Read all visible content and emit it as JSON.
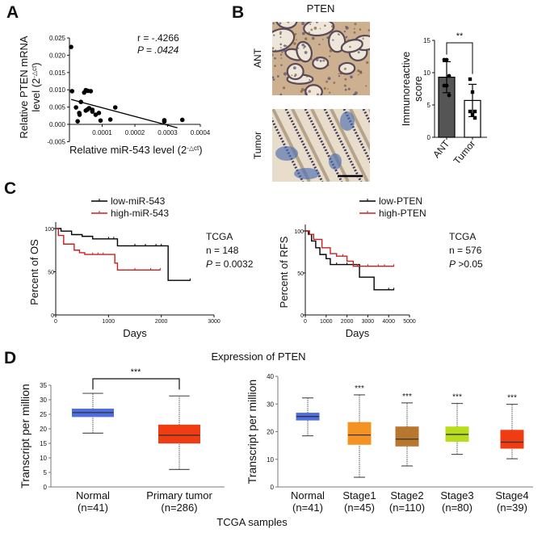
{
  "panels": {
    "a": "A",
    "b": "B",
    "c": "C",
    "d": "D"
  },
  "chart_data": [
    {
      "id": "scatter_A",
      "type": "scatter",
      "xlabel_prefix": "Relative miR-543 level (2",
      "xlabel_sup": "-△ct",
      "xlabel_suffix": ")",
      "ylabel_line1": "Relative PTEN mRNA",
      "ylabel_line2_prefix": "level (2",
      "ylabel_line2_sup": "-△ct",
      "ylabel_line2_suffix": ")",
      "xlim": [
        0,
        0.0004
      ],
      "ylim": [
        -0.005,
        0.025
      ],
      "xticks": [
        "0.0001",
        "0.0002",
        "0.0003",
        "0.0004"
      ],
      "yticks": [
        "-0.005",
        "0.000",
        "0.005",
        "0.010",
        "0.015",
        "0.020",
        "0.025"
      ],
      "stat_r": "r = -.4266",
      "stat_p": "P = .0424",
      "points": [
        [
          5e-06,
          0.0224
        ],
        [
          8e-06,
          0.0096
        ],
        [
          2e-05,
          0.0049
        ],
        [
          2.5e-05,
          0.0009
        ],
        [
          3e-05,
          0.0033
        ],
        [
          3.1e-05,
          0.0028
        ],
        [
          3.5e-05,
          0.0065
        ],
        [
          4.5e-05,
          0.0092
        ],
        [
          5e-05,
          0.0099
        ],
        [
          5.6e-05,
          0.0097
        ],
        [
          5e-05,
          0.004
        ],
        [
          5.5e-05,
          0.0043
        ],
        [
          6e-05,
          0.0047
        ],
        [
          6.5e-05,
          0.0096
        ],
        [
          7e-05,
          0.0042
        ],
        [
          7e-05,
          0.0037
        ],
        [
          8e-05,
          0.0028
        ],
        [
          9e-05,
          0.0033
        ],
        [
          9.5e-05,
          0.0011
        ],
        [
          0.000125,
          0.0014
        ],
        [
          0.00014,
          0.0049
        ],
        [
          0.00029,
          0.0012
        ],
        [
          0.00029,
          0.0008
        ],
        [
          0.000345,
          0.0013
        ]
      ],
      "fit_line": [
        [
          5e-06,
          0.0072
        ],
        [
          0.00033,
          -0.001
        ]
      ]
    },
    {
      "id": "bar_B",
      "type": "bar",
      "title": "PTEN",
      "image_labels": [
        "ANT",
        "Tumor"
      ],
      "ylabel_line1": "Immunoreactive",
      "ylabel_line2": "score",
      "categories": [
        "ANT",
        "Tumor"
      ],
      "values": [
        9.3,
        5.7
      ],
      "sd": [
        2.4,
        2.5
      ],
      "points": [
        [
          12,
          12,
          9.5,
          8,
          8,
          6.5
        ],
        [
          9,
          7,
          4,
          4,
          3.5,
          3
        ]
      ],
      "colors": [
        "#555555",
        "#ffffff"
      ],
      "ylim": [
        0,
        15
      ],
      "yticks": [
        "0",
        "5",
        "10",
        "15"
      ],
      "significance": "**"
    },
    {
      "id": "km_OS",
      "type": "line",
      "ylabel": "Percent of OS",
      "xlabel": "Days",
      "xlim": [
        0,
        3000
      ],
      "ylim": [
        0,
        100
      ],
      "xticks": [
        "0",
        "1000",
        "2000",
        "3000"
      ],
      "yticks": [
        "0",
        "50",
        "100"
      ],
      "legend_placement": "top",
      "annotation": [
        "TCGA",
        "n = 148",
        "P",
        " = 0.0032"
      ],
      "series": [
        {
          "name": "low-miR-543",
          "color": "#000000",
          "steps": [
            [
              0,
              100
            ],
            [
              100,
              97
            ],
            [
              300,
              93
            ],
            [
              500,
              91
            ],
            [
              700,
              88
            ],
            [
              1170,
              80
            ],
            [
              2130,
              40
            ],
            [
              2550,
              40
            ]
          ],
          "censor": [
            1000,
            1100,
            1500,
            1700,
            1900,
            2000,
            2550
          ]
        },
        {
          "name": "high-miR-543",
          "color": "#cc1f1f",
          "steps": [
            [
              0,
              100
            ],
            [
              50,
              92
            ],
            [
              150,
              82
            ],
            [
              350,
              75
            ],
            [
              450,
              72
            ],
            [
              550,
              70
            ],
            [
              1120,
              60
            ],
            [
              1170,
              52
            ],
            [
              1980,
              52
            ]
          ],
          "censor": [
            700,
            800,
            900,
            1500,
            1800,
            1980
          ]
        }
      ]
    },
    {
      "id": "km_RFS",
      "type": "line",
      "ylabel": "Percent of RFS",
      "xlabel": "Days",
      "xlim": [
        0,
        5000
      ],
      "ylim": [
        0,
        100
      ],
      "xticks": [
        "0",
        "1000",
        "2000",
        "3000",
        "4000",
        "5000"
      ],
      "yticks": [
        "0",
        "50",
        "100"
      ],
      "legend_placement": "top",
      "annotation": [
        "TCGA",
        "n = 576",
        "P",
        " >0.05"
      ],
      "series": [
        {
          "name": "low-PTEN",
          "color": "#000000",
          "steps": [
            [
              0,
              100
            ],
            [
              150,
              96
            ],
            [
              300,
              88
            ],
            [
              500,
              80
            ],
            [
              700,
              72
            ],
            [
              1000,
              67
            ],
            [
              1200,
              60
            ],
            [
              2600,
              60
            ],
            [
              2600,
              45
            ],
            [
              3300,
              45
            ],
            [
              3300,
              30
            ],
            [
              4250,
              30
            ]
          ],
          "censor": [
            1500,
            2000,
            4000,
            4250
          ]
        },
        {
          "name": "high-PTEN",
          "color": "#cc1f1f",
          "steps": [
            [
              0,
              100
            ],
            [
              200,
              96
            ],
            [
              400,
              90
            ],
            [
              800,
              80
            ],
            [
              1200,
              73
            ],
            [
              1500,
              70
            ],
            [
              2000,
              64
            ],
            [
              2300,
              58
            ],
            [
              4250,
              58
            ]
          ],
          "censor": [
            1800,
            2500,
            3000,
            3500,
            3800,
            4250
          ]
        }
      ]
    },
    {
      "id": "box_D_left",
      "type": "box",
      "title": "Expression of PTEN",
      "ylabel": "Transcript per million",
      "xlabel": "TCGA samples",
      "ylim": [
        0,
        35
      ],
      "yticks": [
        "0",
        "5",
        "10",
        "15",
        "20",
        "25",
        "30",
        "35"
      ],
      "categories": [
        "Normal",
        "Primary tumor"
      ],
      "n_labels": [
        "(n=41)",
        "(n=286)"
      ],
      "boxes": [
        [
          18.5,
          24.2,
          25.6,
          26.8,
          32.2
        ],
        [
          6,
          15.1,
          17.8,
          21.3,
          31.3
        ]
      ],
      "colors": [
        "#4f6fe0",
        "#f03c12"
      ],
      "significance": "***"
    },
    {
      "id": "box_D_right",
      "type": "box",
      "ylabel": "Transcript per million",
      "ylim": [
        0,
        40
      ],
      "yticks": [
        "0",
        "10",
        "20",
        "30",
        "40"
      ],
      "categories": [
        "Normal",
        "Stage1",
        "Stage2",
        "Stage3",
        "Stage4"
      ],
      "n_labels": [
        "(n=41)",
        "(n=45)",
        "(n=110)",
        "(n=80)",
        "(n=39)"
      ],
      "boxes": [
        [
          18.5,
          24.2,
          25.5,
          26.7,
          32.2
        ],
        [
          3.5,
          15.4,
          18.8,
          23.3,
          33.3
        ],
        [
          7.6,
          14.8,
          17.3,
          21.7,
          30.4
        ],
        [
          11.8,
          16.5,
          19.0,
          21.7,
          30.2
        ],
        [
          10.2,
          14.0,
          16.2,
          20.5,
          29.9
        ]
      ],
      "colors": [
        "#4f6fe0",
        "#f39324",
        "#b8772f",
        "#b8dd1a",
        "#f03c12"
      ],
      "significance": [
        "",
        "***",
        "***",
        "***",
        "***"
      ]
    }
  ]
}
